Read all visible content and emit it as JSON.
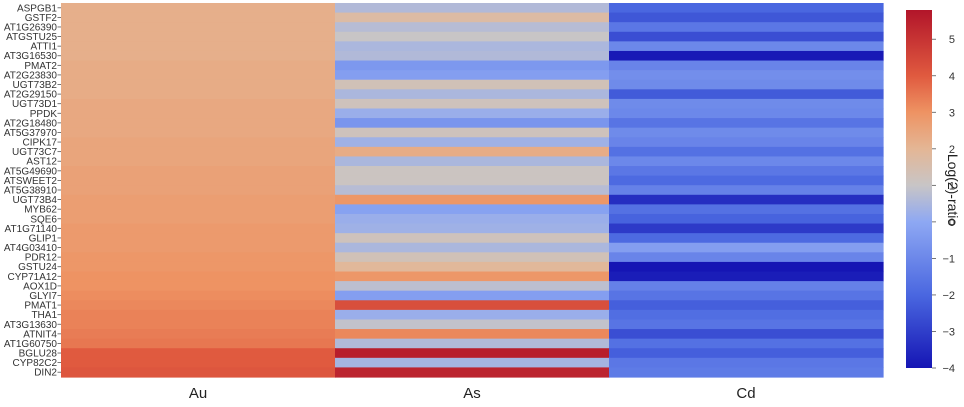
{
  "chart_data": {
    "type": "heatmap",
    "columns": [
      "Au",
      "As",
      "Cd"
    ],
    "rows": [
      "ASPGB1",
      "GSTF2",
      "AT1G26390",
      "ATGSTU25",
      "ATTI1",
      "AT3G16530",
      "PMAT2",
      "AT2G23830",
      "UGT73B2",
      "AT2G29150",
      "UGT73D1",
      "PPDK",
      "AT2G18480",
      "AT5G37970",
      "CIPK17",
      "UGT73C7",
      "AST12",
      "AT5G49690",
      "ATSWEET2",
      "AT5G38910",
      "UGT73B4",
      "MYB62",
      "SQE6",
      "AT1G71140",
      "GLIP1",
      "AT4G03410",
      "PDR12",
      "GSTU24",
      "CYP71A12",
      "AOX1D",
      "GLYI7",
      "PMAT1",
      "THA1",
      "AT3G13630",
      "ATNIT4",
      "AT1G60750",
      "BGLU28",
      "CYP82C2",
      "DIN2"
    ],
    "values": [
      [
        2.2,
        0.6,
        -2.0
      ],
      [
        2.2,
        1.7,
        -2.4
      ],
      [
        2.2,
        0.7,
        -1.5
      ],
      [
        2.2,
        1.0,
        -2.6
      ],
      [
        2.2,
        0.5,
        -1.0
      ],
      [
        2.2,
        0.6,
        -3.9
      ],
      [
        2.3,
        -0.5,
        -1.1
      ],
      [
        2.3,
        -0.3,
        -0.8
      ],
      [
        2.3,
        1.3,
        -0.9
      ],
      [
        2.3,
        0.5,
        -2.3
      ],
      [
        2.4,
        1.2,
        -0.9
      ],
      [
        2.4,
        0.2,
        -1.0
      ],
      [
        2.4,
        -0.6,
        -1.6
      ],
      [
        2.4,
        1.2,
        -0.9
      ],
      [
        2.5,
        0.3,
        -1.1
      ],
      [
        2.5,
        2.3,
        -1.7
      ],
      [
        2.5,
        0.5,
        -1.0
      ],
      [
        2.6,
        1.1,
        -1.5
      ],
      [
        2.6,
        1.1,
        -1.9
      ],
      [
        2.6,
        0.7,
        -1.2
      ],
      [
        2.7,
        2.9,
        -3.4
      ],
      [
        2.7,
        -0.2,
        -1.7
      ],
      [
        2.7,
        0.2,
        -2.1
      ],
      [
        2.8,
        0.3,
        -3.1
      ],
      [
        2.8,
        1.2,
        -1.9
      ],
      [
        2.8,
        0.5,
        -0.3
      ],
      [
        2.9,
        1.3,
        -1.1
      ],
      [
        2.9,
        1.9,
        -4.0
      ],
      [
        3.0,
        2.9,
        -3.8
      ],
      [
        3.0,
        0.8,
        -1.2
      ],
      [
        3.1,
        -0.3,
        -1.6
      ],
      [
        3.2,
        4.3,
        -2.2
      ],
      [
        3.3,
        0.2,
        -1.8
      ],
      [
        3.3,
        0.9,
        -1.6
      ],
      [
        3.4,
        3.2,
        -2.6
      ],
      [
        3.5,
        0.6,
        -1.7
      ],
      [
        4.0,
        5.6,
        -2.2
      ],
      [
        4.0,
        0.4,
        -1.5
      ],
      [
        4.1,
        5.4,
        -1.4
      ]
    ],
    "zmin": -4,
    "zmax": 5.8,
    "colorbar": {
      "title": "Log(2)-ratio",
      "ticks": [
        -4,
        -3,
        -2,
        -1,
        0,
        1,
        2,
        3,
        4,
        5
      ],
      "tick_labels": [
        "−4",
        "−3",
        "−2",
        "−1",
        "0",
        "1",
        "2",
        "3",
        "4",
        "5"
      ],
      "colorscale": [
        [
          -4,
          "#1515b4"
        ],
        [
          -2,
          "#4a67e0"
        ],
        [
          0,
          "#8ea8f3"
        ],
        [
          1,
          "#c8c5c6"
        ],
        [
          2,
          "#e4b695"
        ],
        [
          3,
          "#ee9363"
        ],
        [
          4,
          "#e05a3f"
        ],
        [
          5.8,
          "#b2152a"
        ]
      ]
    }
  }
}
